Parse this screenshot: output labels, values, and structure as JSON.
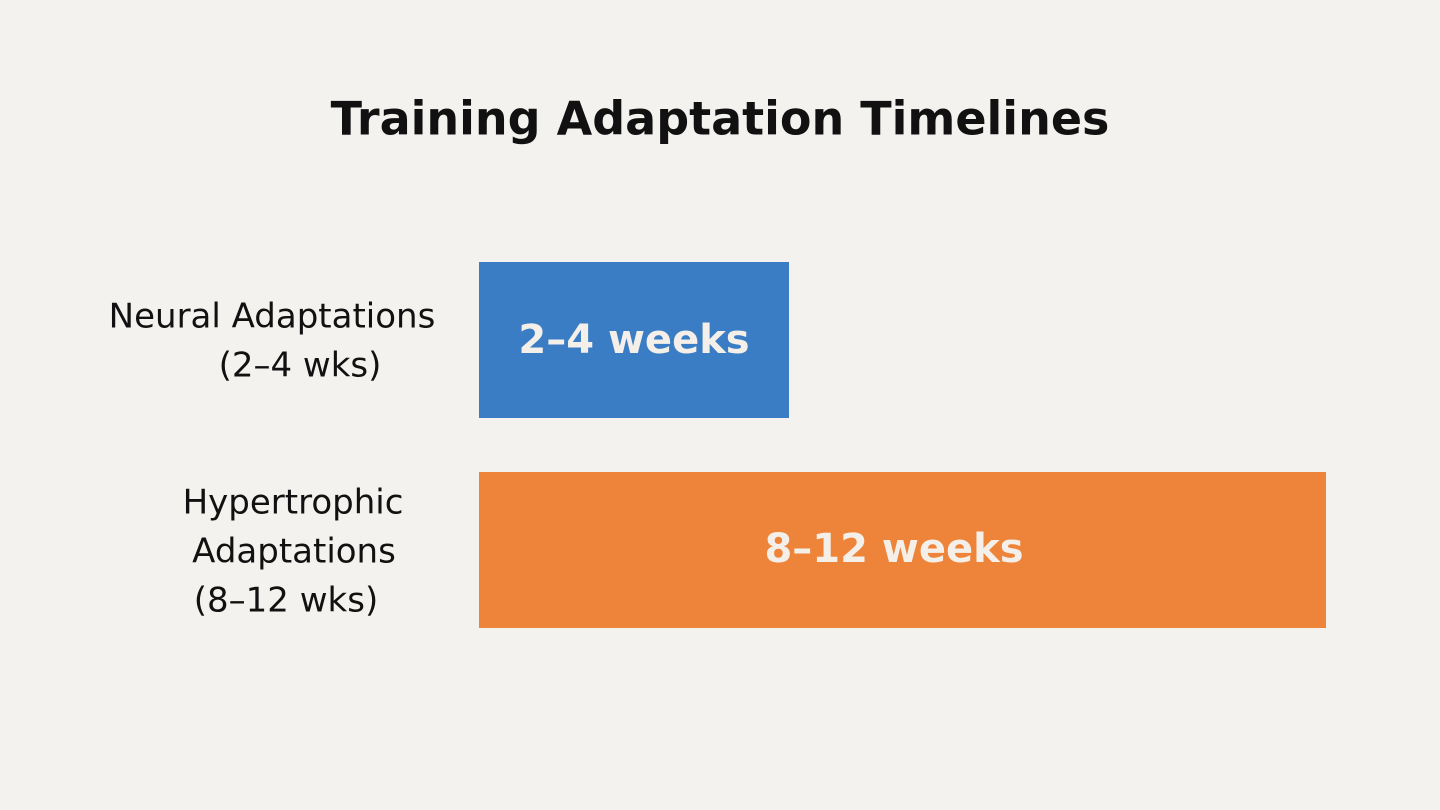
{
  "title": "Training Adaptation Timelines",
  "rows": [
    {
      "label_lines": [
        "Neural Adaptations",
        "(2–4 wks)"
      ],
      "bar_label": "2–4 weeks",
      "color": "#3a7dc4"
    },
    {
      "label_lines": [
        "Hypertrophic",
        "Adaptations",
        "(8–12 wks)"
      ],
      "bar_label": "8–12 weeks",
      "color": "#ee843a"
    }
  ]
}
